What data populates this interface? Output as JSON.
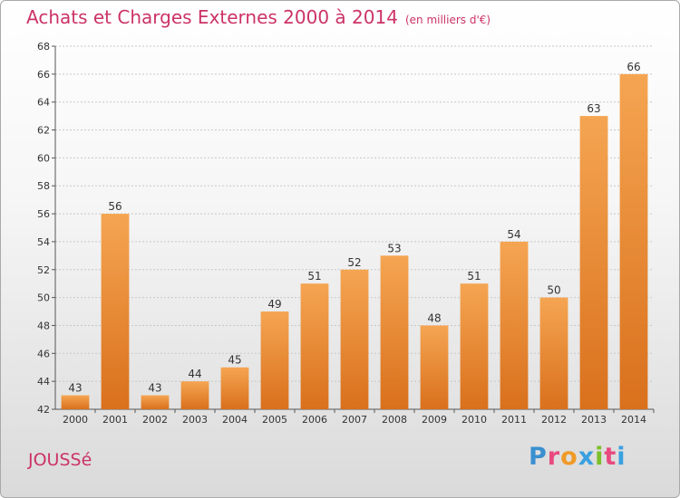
{
  "header": {
    "title": "Achats et Charges Externes 2000 à 2014",
    "unit": "(en milliers d'€)"
  },
  "footer": {
    "commune": "JOUSSé",
    "logo": [
      "P",
      "r",
      "o",
      "x",
      "i",
      "t",
      "i"
    ]
  },
  "colors": {
    "title": "#cc3366",
    "bar_top": "#f5a552",
    "bar_bottom": "#d9701c",
    "grid": "#c8c8c8"
  },
  "chart_data": {
    "type": "bar",
    "title": "Achats et Charges Externes 2000 à 2014",
    "subtitle": "(en milliers d'€)",
    "categories": [
      "2000",
      "2001",
      "2002",
      "2003",
      "2004",
      "2005",
      "2006",
      "2007",
      "2008",
      "2009",
      "2010",
      "2011",
      "2012",
      "2013",
      "2014"
    ],
    "values": [
      43,
      56,
      43,
      44,
      45,
      49,
      51,
      52,
      53,
      48,
      51,
      54,
      50,
      63,
      66
    ],
    "ylim": [
      42,
      68
    ],
    "yticks": [
      42,
      44,
      46,
      48,
      50,
      52,
      54,
      56,
      58,
      60,
      62,
      64,
      66,
      68
    ],
    "grid": true
  }
}
